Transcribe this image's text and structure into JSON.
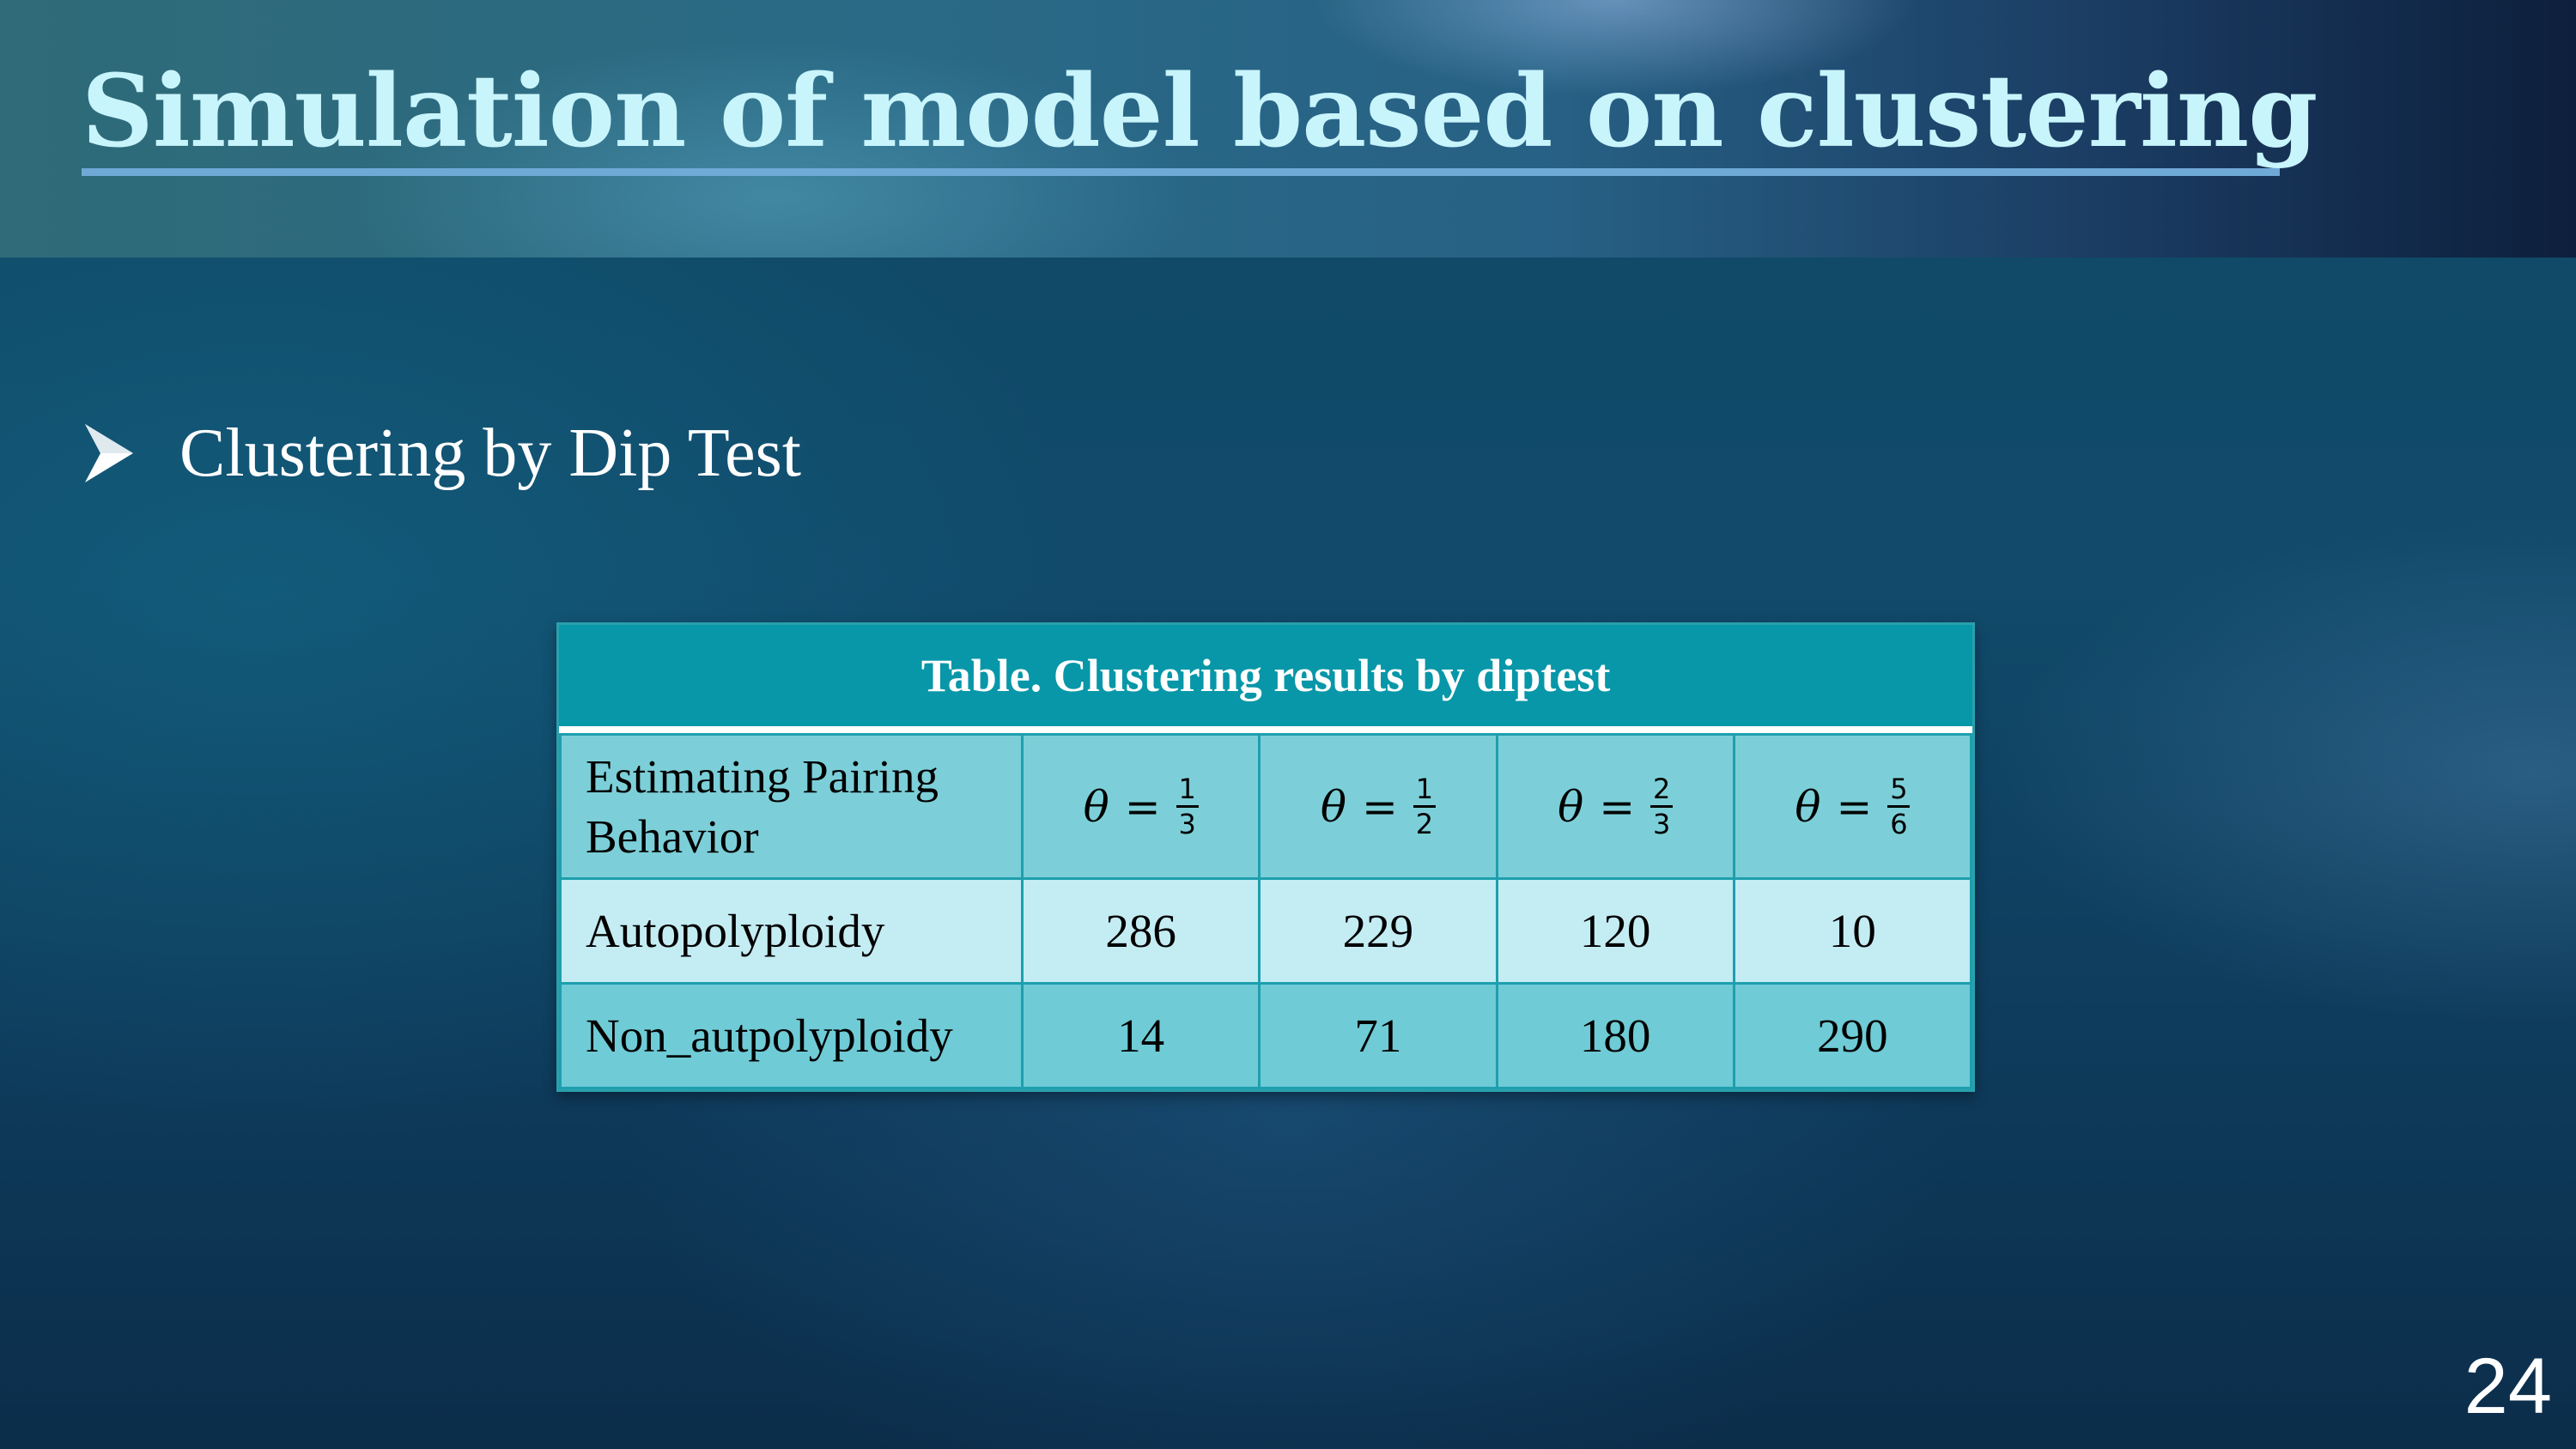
{
  "slide": {
    "title": "Simulation of model based on clustering",
    "bullet": "Clustering by Dip Test",
    "page_number": "24"
  },
  "table": {
    "caption": "Table. Clustering results by diptest",
    "header": {
      "row_label": "Estimating Pairing Behavior",
      "columns": [
        {
          "symbol": "θ",
          "equals": "=",
          "numerator": "1",
          "denominator": "3"
        },
        {
          "symbol": "θ",
          "equals": "=",
          "numerator": "1",
          "denominator": "2"
        },
        {
          "symbol": "θ",
          "equals": "=",
          "numerator": "2",
          "denominator": "3"
        },
        {
          "symbol": "θ",
          "equals": "=",
          "numerator": "5",
          "denominator": "6"
        }
      ]
    },
    "rows": [
      {
        "label": "Autopolyploidy",
        "values": [
          "286",
          "229",
          "120",
          "10"
        ]
      },
      {
        "label": "Non_autpolyploidy",
        "values": [
          "14",
          "71",
          "180",
          "290"
        ]
      }
    ]
  },
  "colors": {
    "title": "#c8f4fb",
    "table_caption_bg": "#0797a8",
    "header_row_bg": "#7ccfd8",
    "row1_bg": "#c4ecf3",
    "row2_bg": "#6fcbd6"
  },
  "icons": {
    "bullet": "arrowhead-bullet-icon"
  }
}
